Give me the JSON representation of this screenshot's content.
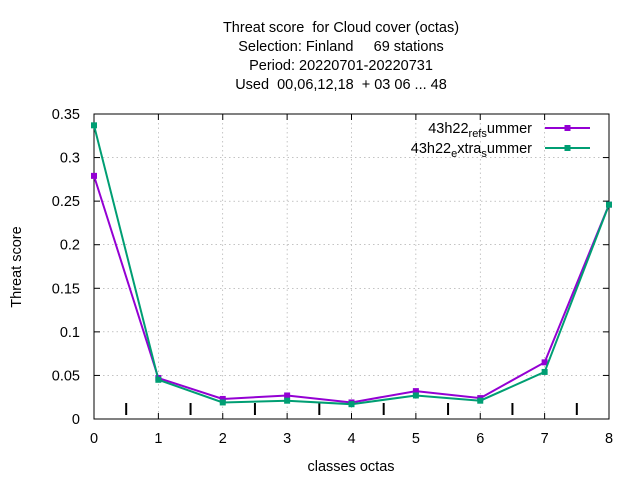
{
  "chart_data": {
    "type": "line",
    "title": [
      "Threat score  for Cloud cover (octas)",
      "Selection: Finland     69 stations",
      "Period: 20220701-20220731",
      "Used  00,06,12,18  + 03 06 ... 48"
    ],
    "xlabel": "classes octas",
    "ylabel": "Threat score",
    "xlim": [
      0,
      8
    ],
    "ylim": [
      0,
      0.35
    ],
    "xticks": [
      0,
      1,
      2,
      3,
      4,
      5,
      6,
      7,
      8
    ],
    "xtick_labels": [
      "0",
      "1",
      "2",
      "3",
      "4",
      "5",
      "6",
      "7",
      "8"
    ],
    "yticks": [
      0,
      0.05,
      0.1,
      0.15,
      0.2,
      0.25,
      0.3,
      0.35
    ],
    "ytick_labels": [
      "0",
      "0.05",
      "0.1",
      "0.15",
      "0.2",
      "0.25",
      "0.3",
      "0.35"
    ],
    "class_boundaries": [
      0.5,
      1.5,
      2.5,
      3.5,
      4.5,
      5.5,
      6.5,
      7.5
    ],
    "grid": true,
    "legend_position": "top-right",
    "series": [
      {
        "name": "43h22_ref_summer",
        "legend_parts": [
          {
            "t": "43h22",
            "sub": false
          },
          {
            "t": "ref",
            "sub": true
          },
          {
            "t": "s",
            "sub": true
          },
          {
            "t": "ummer",
            "sub": false
          }
        ],
        "color": "#9400d3",
        "x": [
          0,
          1,
          2,
          3,
          4,
          5,
          6,
          7,
          8
        ],
        "values": [
          0.279,
          0.047,
          0.023,
          0.027,
          0.019,
          0.032,
          0.024,
          0.065,
          0.246
        ]
      },
      {
        "name": "43h22_extra_summer",
        "legend_parts": [
          {
            "t": "43h22",
            "sub": false
          },
          {
            "t": "e",
            "sub": true
          },
          {
            "t": "xtra",
            "sub": false
          },
          {
            "t": "s",
            "sub": true
          },
          {
            "t": "ummer",
            "sub": false
          }
        ],
        "color": "#009e73",
        "x": [
          0,
          1,
          2,
          3,
          4,
          5,
          6,
          7,
          8
        ],
        "values": [
          0.337,
          0.045,
          0.019,
          0.021,
          0.017,
          0.027,
          0.021,
          0.054,
          0.246
        ]
      }
    ]
  }
}
